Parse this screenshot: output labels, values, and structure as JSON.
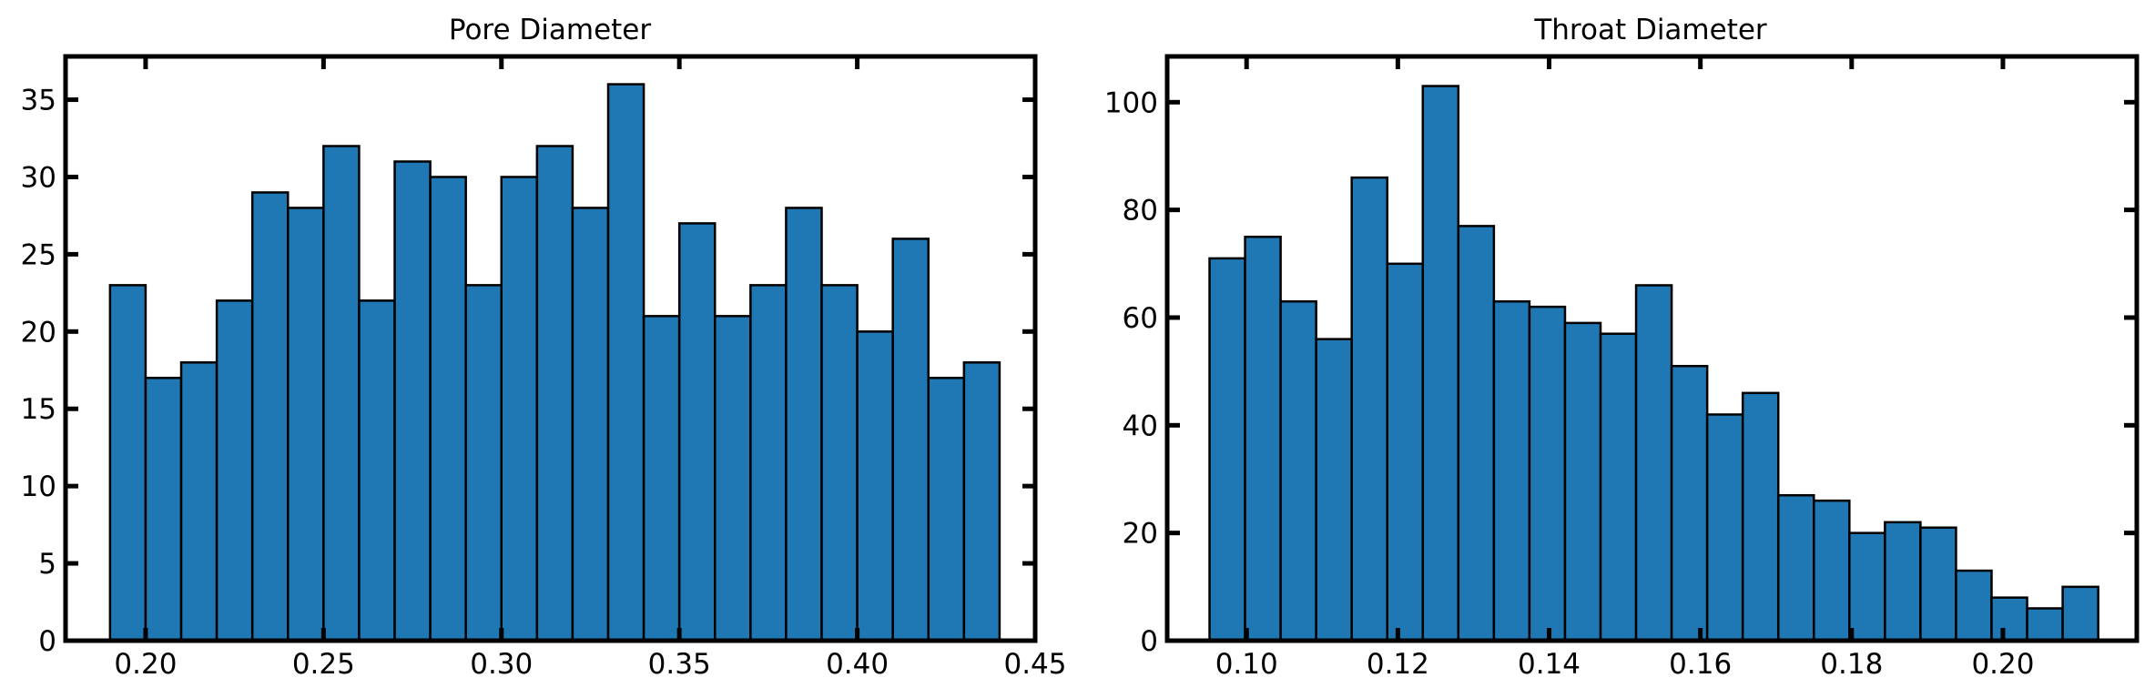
{
  "chart_data": [
    {
      "type": "bar",
      "title": "Pore Diameter",
      "xlabel": "",
      "ylabel": "",
      "xlim": [
        0.1775,
        0.45
      ],
      "ylim": [
        0,
        37.8
      ],
      "bin_edges": [
        0.19,
        0.2,
        0.21,
        0.22,
        0.23,
        0.24,
        0.25,
        0.26,
        0.27,
        0.28,
        0.29,
        0.3,
        0.31,
        0.32,
        0.33,
        0.34,
        0.35,
        0.36,
        0.37,
        0.38,
        0.39,
        0.4,
        0.41,
        0.42,
        0.43,
        0.44
      ],
      "values": [
        23,
        17,
        18,
        22,
        29,
        28,
        32,
        22,
        31,
        30,
        23,
        30,
        32,
        28,
        36,
        21,
        27,
        21,
        23,
        28,
        23,
        20,
        26,
        17,
        18
      ],
      "xticks": [
        "0.20",
        "0.25",
        "0.30",
        "0.35",
        "0.40",
        "0.45"
      ],
      "xtick_values": [
        0.2,
        0.25,
        0.3,
        0.35,
        0.4,
        0.45
      ],
      "yticks": [
        "0",
        "5",
        "10",
        "15",
        "20",
        "25",
        "30",
        "35"
      ],
      "ytick_values": [
        0,
        5,
        10,
        15,
        20,
        25,
        30,
        35
      ],
      "bar_color": "#1f77b4",
      "edge_color": "#000000",
      "grid": false
    },
    {
      "type": "bar",
      "title": "Throat Diameter",
      "xlabel": "",
      "ylabel": "",
      "xlim": [
        0.0895,
        0.2177
      ],
      "ylim": [
        0,
        108.5
      ],
      "bin_edges": [
        0.0951,
        0.0998,
        0.1045,
        0.1092,
        0.1139,
        0.1186,
        0.1233,
        0.128,
        0.1327,
        0.1374,
        0.1421,
        0.1468,
        0.1515,
        0.1562,
        0.1609,
        0.1656,
        0.1703,
        0.175,
        0.1797,
        0.1844,
        0.1891,
        0.1938,
        0.1985,
        0.2032,
        0.2079,
        0.2126
      ],
      "values": [
        71,
        75,
        63,
        56,
        86,
        70,
        103,
        77,
        63,
        62,
        59,
        57,
        66,
        51,
        42,
        46,
        27,
        26,
        20,
        22,
        21,
        13,
        8,
        6,
        10
      ],
      "xticks": [
        "0.10",
        "0.12",
        "0.14",
        "0.16",
        "0.18",
        "0.20"
      ],
      "xtick_values": [
        0.1,
        0.12,
        0.14,
        0.16,
        0.18,
        0.2
      ],
      "yticks": [
        "0",
        "20",
        "40",
        "60",
        "80",
        "100"
      ],
      "ytick_values": [
        0,
        20,
        40,
        60,
        80,
        100
      ],
      "bar_color": "#1f77b4",
      "edge_color": "#000000",
      "grid": false
    }
  ]
}
